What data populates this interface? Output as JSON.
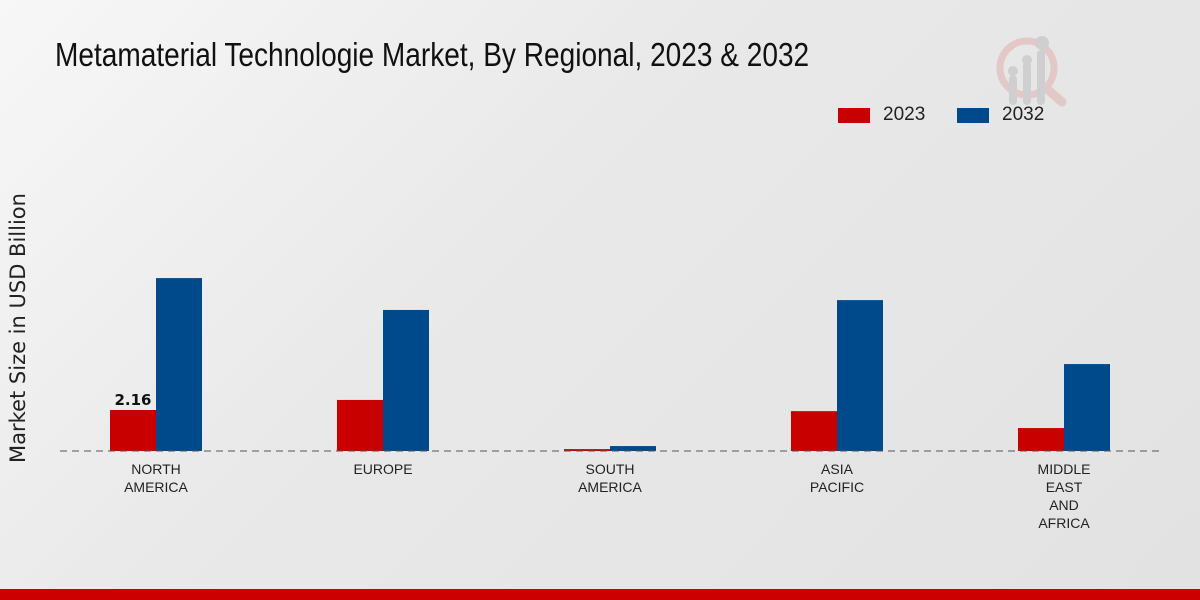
{
  "chart_data": {
    "type": "bar",
    "title": "Metamaterial Technologie Market, By Regional, 2023 & 2032",
    "xlabel": "",
    "ylabel": "Market Size in USD Billion",
    "categories": [
      [
        "NORTH",
        "AMERICA"
      ],
      [
        "EUROPE"
      ],
      [
        "SOUTH",
        "AMERICA"
      ],
      [
        "ASIA",
        "PACIFIC"
      ],
      [
        "MIDDLE",
        "EAST",
        "AND",
        "AFRICA"
      ]
    ],
    "series": [
      {
        "name": "2023",
        "color": "#c80000",
        "values": [
          2.16,
          2.69,
          0.1,
          2.1,
          1.21
        ]
      },
      {
        "name": "2032",
        "color": "#004a8c",
        "values": [
          9.11,
          7.43,
          0.26,
          7.95,
          4.58
        ]
      }
    ],
    "data_labels": [
      {
        "series": 0,
        "index": 0,
        "text": "2.16"
      }
    ],
    "ylim": [
      0,
      14
    ],
    "grid": false,
    "legend_position": "top-right"
  }
}
